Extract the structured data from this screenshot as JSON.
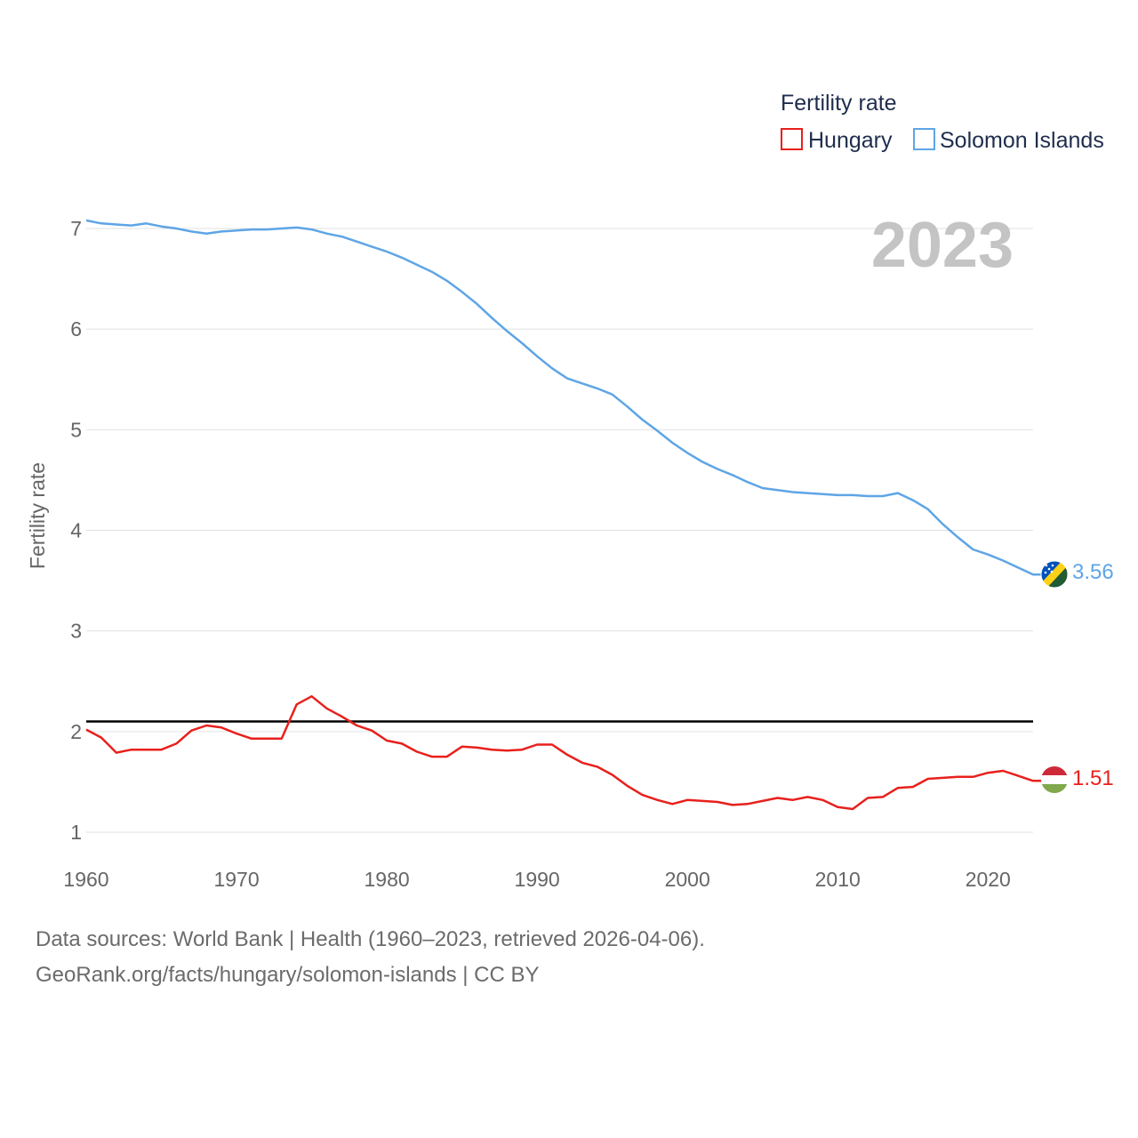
{
  "chart_data": {
    "type": "line",
    "title": "Fertility rate",
    "year_label": "2023",
    "xlabel": "",
    "ylabel": "Fertility rate",
    "xlim": [
      1960,
      2023
    ],
    "ylim": [
      0.75,
      7.3
    ],
    "x_ticks": [
      1960,
      1970,
      1980,
      1990,
      2000,
      2010,
      2020
    ],
    "y_ticks": [
      1,
      2,
      3,
      4,
      5,
      6,
      7
    ],
    "grid": true,
    "reference_line": 2.1,
    "legend_title": "Fertility rate",
    "legend_position": "top-right",
    "x": [
      1960,
      1961,
      1962,
      1963,
      1964,
      1965,
      1966,
      1967,
      1968,
      1969,
      1970,
      1971,
      1972,
      1973,
      1974,
      1975,
      1976,
      1977,
      1978,
      1979,
      1980,
      1981,
      1982,
      1983,
      1984,
      1985,
      1986,
      1987,
      1988,
      1989,
      1990,
      1991,
      1992,
      1993,
      1994,
      1995,
      1996,
      1997,
      1998,
      1999,
      2000,
      2001,
      2002,
      2003,
      2004,
      2005,
      2006,
      2007,
      2008,
      2009,
      2010,
      2011,
      2012,
      2013,
      2014,
      2015,
      2016,
      2017,
      2018,
      2019,
      2020,
      2021,
      2022,
      2023
    ],
    "series": [
      {
        "name": "Hungary",
        "color": "#e8201c",
        "end_label": "1.51",
        "values": [
          2.02,
          1.94,
          1.79,
          1.82,
          1.82,
          1.82,
          1.88,
          2.01,
          2.06,
          2.04,
          1.98,
          1.93,
          1.93,
          1.93,
          2.27,
          2.35,
          2.23,
          2.15,
          2.06,
          2.01,
          1.91,
          1.88,
          1.8,
          1.75,
          1.75,
          1.85,
          1.84,
          1.82,
          1.81,
          1.82,
          1.87,
          1.87,
          1.77,
          1.69,
          1.65,
          1.57,
          1.46,
          1.37,
          1.32,
          1.28,
          1.32,
          1.31,
          1.3,
          1.27,
          1.28,
          1.31,
          1.34,
          1.32,
          1.35,
          1.32,
          1.25,
          1.23,
          1.34,
          1.35,
          1.44,
          1.45,
          1.53,
          1.54,
          1.55,
          1.55,
          1.59,
          1.61,
          1.56,
          1.51
        ]
      },
      {
        "name": "Solomon Islands",
        "color": "#5ea5e6",
        "end_label": "3.56",
        "values": [
          7.08,
          7.05,
          7.04,
          7.03,
          7.05,
          7.02,
          7.0,
          6.97,
          6.95,
          6.97,
          6.98,
          6.99,
          6.99,
          7.0,
          7.01,
          6.99,
          6.95,
          6.92,
          6.87,
          6.82,
          6.77,
          6.71,
          6.64,
          6.57,
          6.48,
          6.37,
          6.25,
          6.11,
          5.98,
          5.86,
          5.73,
          5.61,
          5.51,
          5.46,
          5.41,
          5.35,
          5.23,
          5.1,
          4.99,
          4.87,
          4.77,
          4.68,
          4.61,
          4.55,
          4.48,
          4.42,
          4.4,
          4.38,
          4.37,
          4.36,
          4.35,
          4.35,
          4.34,
          4.34,
          4.37,
          4.3,
          4.21,
          4.06,
          3.93,
          3.81,
          3.76,
          3.7,
          3.63,
          3.56
        ]
      }
    ]
  },
  "footer": {
    "line1": "Data sources: World Bank | Health (1960–2023, retrieved 2026-04-06).",
    "line2": "GeoRank.org/facts/hungary/solomon-islands | CC BY"
  },
  "icons": {
    "hungary": "hungary-flag-icon",
    "solomon": "solomon-islands-flag-icon"
  }
}
